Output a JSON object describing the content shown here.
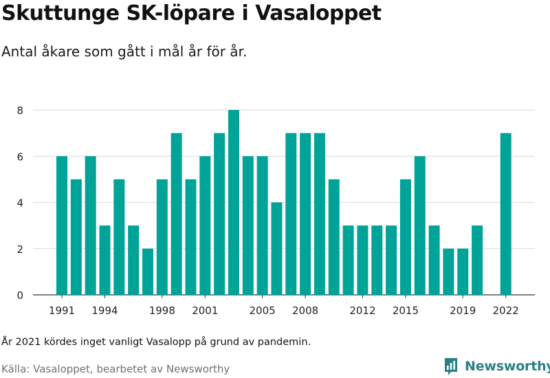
{
  "title": "Skuttunge SK-löpare i Vasaloppet",
  "subtitle": "Antal åkare som gått i mål år för år.",
  "note": "År 2021 kördes inget vanligt Vasalopp på grund av pandemin.",
  "source": "Källa: Vasaloppet, bearbetet av Newsworthy",
  "brand": {
    "name": "Newsworthy",
    "icon": "newsworthy-logo-icon",
    "color": "#2a7f86"
  },
  "chart_data": {
    "type": "bar",
    "x": [
      1991,
      1992,
      1993,
      1994,
      1995,
      1996,
      1997,
      1998,
      1999,
      2000,
      2001,
      2002,
      2003,
      2004,
      2005,
      2006,
      2007,
      2008,
      2009,
      2010,
      2011,
      2012,
      2013,
      2014,
      2015,
      2016,
      2017,
      2018,
      2019,
      2020,
      2021,
      2022
    ],
    "values": [
      6,
      5,
      6,
      3,
      5,
      3,
      2,
      5,
      7,
      5,
      6,
      7,
      8,
      6,
      6,
      4,
      7,
      7,
      7,
      5,
      3,
      3,
      3,
      3,
      5,
      6,
      3,
      2,
      2,
      3,
      null,
      7
    ],
    "x_tick_labels": [
      "1991",
      "1994",
      "1998",
      "2001",
      "2005",
      "2008",
      "2012",
      "2015",
      "2019",
      "2022"
    ],
    "y_ticks": [
      0,
      2,
      4,
      6,
      8
    ],
    "ylim": [
      0,
      8
    ],
    "grid": true,
    "bar_color": "#00a398"
  }
}
